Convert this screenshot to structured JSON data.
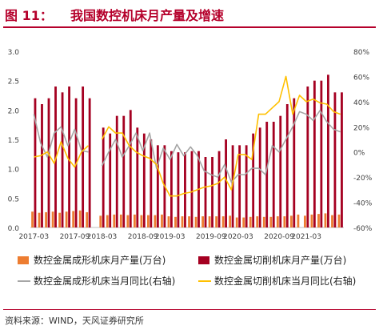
{
  "title": {
    "fig_label": "图 11：",
    "text": "我国数控机床月产量及增速"
  },
  "source": "资料来源：WIND，天风证券研究所",
  "legend": {
    "forming": "数控金属成形机床月产量(万台)",
    "cutting": "数控金属切削机床月产量(万台)",
    "forming_yoy": "数控金属成形机床当月同比(右轴)",
    "cutting_yoy": "数控金属切削机床当月同比(右轴)"
  },
  "colors": {
    "forming": "#ed7d31",
    "cutting": "#a50021",
    "forming_yoy": "#a6a6a6",
    "cutting_yoy": "#ffc000",
    "title": "#b5002b"
  },
  "chart_data": {
    "type": "bar",
    "x": [
      "2017-03",
      "2017-04",
      "2017-05",
      "2017-06",
      "2017-07",
      "2017-08",
      "2017-09",
      "2017-10",
      "2017-11",
      "2017-12",
      "2018-03",
      "2018-04",
      "2018-05",
      "2018-06",
      "2018-07",
      "2018-08",
      "2018-09",
      "2018-10",
      "2018-11",
      "2018-12",
      "2019-03",
      "2019-04",
      "2019-05",
      "2019-06",
      "2019-07",
      "2019-08",
      "2019-09",
      "2019-10",
      "2019-11",
      "2019-12",
      "2020-03",
      "2020-04",
      "2020-05",
      "2020-06",
      "2020-07",
      "2020-08",
      "2020-09",
      "2020-10",
      "2020-11",
      "2020-12",
      "2021-03",
      "2021-04",
      "2021-05",
      "2021-06",
      "2021-07",
      "2021-08"
    ],
    "x_tick_labels": [
      "2017-03",
      "2017-09",
      "2018-03",
      "2018-09",
      "2019-03",
      "2019-09",
      "2020-03",
      "2020-09",
      "2021-03"
    ],
    "left_axis": {
      "ylim": [
        0,
        3.0
      ],
      "ticks": [
        "0.0",
        "0.5",
        "1.0",
        "1.5",
        "2.0",
        "2.5",
        "3.0"
      ]
    },
    "right_axis": {
      "ylim": [
        -60,
        80
      ],
      "ticks": [
        "-60%",
        "-40%",
        "-20%",
        "0%",
        "20%",
        "40%",
        "60%",
        "80%"
      ]
    },
    "grid": false,
    "legend_position": "bottom",
    "series": [
      {
        "name": "数控金属成形机床月产量(万台)",
        "type": "bar",
        "axis": "left",
        "values": [
          0.27,
          0.25,
          0.26,
          0.27,
          0.25,
          0.27,
          0.28,
          0.29,
          0.26,
          null,
          0.2,
          0.21,
          0.22,
          0.22,
          0.21,
          0.22,
          0.21,
          0.21,
          0.21,
          0.22,
          0.19,
          0.18,
          0.19,
          0.19,
          0.18,
          0.19,
          0.19,
          0.19,
          0.19,
          0.2,
          0.17,
          0.17,
          0.18,
          0.19,
          0.18,
          0.18,
          0.19,
          0.19,
          0.2,
          0.22,
          0.2,
          0.22,
          0.23,
          0.24,
          0.21,
          0.22
        ]
      },
      {
        "name": "数控金属切削机床月产量(万台)",
        "type": "bar",
        "axis": "left",
        "values": [
          2.2,
          2.1,
          2.2,
          2.4,
          2.3,
          2.4,
          2.2,
          2.4,
          2.2,
          null,
          1.7,
          1.6,
          1.9,
          1.9,
          2.0,
          1.7,
          1.6,
          1.5,
          1.4,
          1.4,
          1.3,
          1.28,
          1.28,
          1.3,
          1.3,
          1.2,
          1.2,
          1.3,
          1.5,
          1.4,
          1.4,
          1.4,
          1.6,
          1.7,
          1.8,
          1.8,
          1.9,
          2.1,
          2.2,
          null,
          2.4,
          2.5,
          2.5,
          2.6,
          2.3,
          2.3
        ]
      },
      {
        "name": "数控金属成形机床当月同比(右轴)",
        "type": "line",
        "axis": "right",
        "values": [
          30,
          7,
          -4,
          15,
          20,
          5,
          18,
          1,
          0,
          null,
          -11,
          0,
          10,
          -4,
          5,
          15,
          1,
          15,
          -13,
          3,
          -6,
          6,
          -3,
          4,
          -3,
          -15,
          -18,
          -20,
          -10,
          -24,
          -18,
          -18,
          -13,
          -13,
          -18,
          5,
          0,
          10,
          20,
          32,
          30,
          25,
          33,
          24,
          18,
          16
        ]
      },
      {
        "name": "数控金属切削机床当月同比(右轴)",
        "type": "line",
        "axis": "right",
        "values": [
          -4,
          -3,
          0,
          -9,
          8,
          -5,
          -12,
          0,
          5,
          null,
          10,
          20,
          15,
          15,
          5,
          0,
          -3,
          -5,
          -10,
          -25,
          -35,
          -35,
          -33,
          -32,
          -30,
          -28,
          -27,
          -25,
          -20,
          -30,
          -2,
          -2,
          -6,
          30,
          30,
          35,
          40,
          60,
          30,
          45,
          40,
          42,
          39,
          38,
          32,
          30
        ]
      }
    ]
  }
}
